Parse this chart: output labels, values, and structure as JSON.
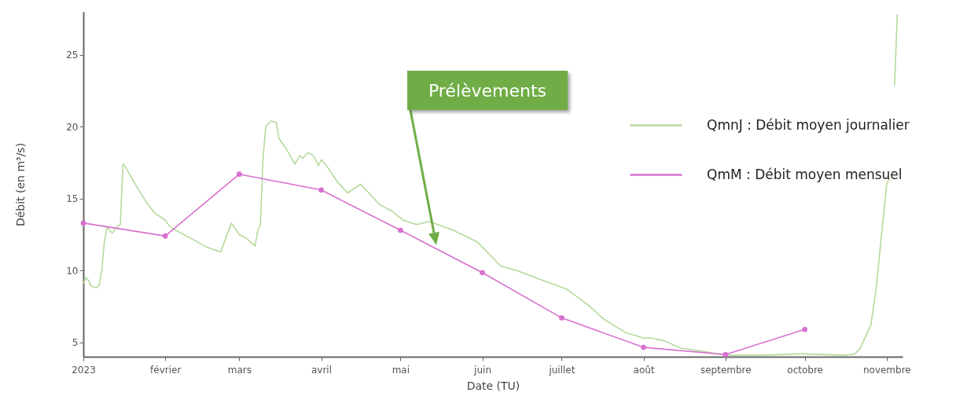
{
  "chart_data": {
    "type": "line",
    "xlabel": "Date (TU)",
    "ylabel": "Débit (en m³/s)",
    "xlim": [
      "2023-01-01",
      "2023-11-07"
    ],
    "ylim": [
      4,
      28
    ],
    "yticks": [
      5,
      10,
      15,
      20,
      25
    ],
    "xticks": [
      {
        "value": "2023-01-01",
        "label": "2023"
      },
      {
        "value": "2023-02-01",
        "label": "février"
      },
      {
        "value": "2023-03-01",
        "label": "mars"
      },
      {
        "value": "2023-04-01",
        "label": "avril"
      },
      {
        "value": "2023-05-01",
        "label": "mai"
      },
      {
        "value": "2023-06-01",
        "label": "juin"
      },
      {
        "value": "2023-07-01",
        "label": "juillet"
      },
      {
        "value": "2023-08-01",
        "label": "août"
      },
      {
        "value": "2023-09-01",
        "label": "septembre"
      },
      {
        "value": "2023-10-01",
        "label": "octobre"
      },
      {
        "value": "2023-11-01",
        "label": "novembre"
      }
    ],
    "grid": false,
    "legend": "top right",
    "annotations": [
      "Prélèvements"
    ],
    "series": [
      {
        "name": "QmnJ : Débit moyen journalier",
        "color": "#b5d99c",
        "x": [
          "2023-01-01",
          "2023-01-02",
          "2023-01-03",
          "2023-01-04",
          "2023-01-06",
          "2023-01-07",
          "2023-01-08",
          "2023-01-09",
          "2023-01-10",
          "2023-01-12",
          "2023-01-13",
          "2023-01-15",
          "2023-01-16",
          "2023-01-17",
          "2023-01-20",
          "2023-01-22",
          "2023-01-25",
          "2023-01-28",
          "2023-02-01",
          "2023-02-03",
          "2023-02-08",
          "2023-02-12",
          "2023-02-16",
          "2023-02-20",
          "2023-02-22",
          "2023-02-26",
          "2023-03-01",
          "2023-03-04",
          "2023-03-07",
          "2023-03-08",
          "2023-03-09",
          "2023-03-10",
          "2023-03-11",
          "2023-03-13",
          "2023-03-15",
          "2023-03-16",
          "2023-03-19",
          "2023-03-22",
          "2023-03-24",
          "2023-03-25",
          "2023-03-27",
          "2023-03-29",
          "2023-03-31",
          "2023-04-01",
          "2023-04-03",
          "2023-04-07",
          "2023-04-11",
          "2023-04-16",
          "2023-04-23",
          "2023-04-28",
          "2023-05-02",
          "2023-05-07",
          "2023-05-12",
          "2023-05-21",
          "2023-05-30",
          "2023-06-08",
          "2023-06-14",
          "2023-06-24",
          "2023-07-03",
          "2023-07-11",
          "2023-07-17",
          "2023-07-25",
          "2023-08-01",
          "2023-08-04",
          "2023-08-09",
          "2023-08-15",
          "2023-08-24",
          "2023-09-02",
          "2023-09-15",
          "2023-09-30",
          "2023-10-16",
          "2023-10-20",
          "2023-10-22",
          "2023-10-24",
          "2023-10-26",
          "2023-10-28",
          "2023-10-30",
          "2023-11-01",
          "2023-11-02",
          "2023-11-03",
          "2023-11-04",
          "2023-11-05"
        ],
        "values": [
          9.1,
          9.5,
          9.3,
          8.9,
          8.8,
          9.0,
          10.0,
          12.1,
          13.0,
          12.6,
          12.9,
          13.2,
          17.4,
          17.2,
          16.2,
          15.6,
          14.7,
          14.0,
          13.5,
          13.0,
          12.5,
          12.1,
          11.7,
          11.4,
          11.3,
          13.3,
          12.5,
          12.2,
          11.7,
          12.8,
          13.2,
          17.8,
          20.0,
          20.4,
          20.3,
          19.2,
          18.4,
          17.4,
          18.0,
          17.8,
          18.2,
          18.0,
          17.3,
          17.7,
          17.3,
          16.2,
          15.4,
          16.0,
          14.6,
          14.1,
          13.5,
          13.2,
          13.4,
          12.8,
          12.0,
          10.3,
          10.0,
          9.3,
          8.7,
          7.6,
          6.6,
          5.7,
          5.3,
          5.3,
          5.1,
          4.6,
          4.35,
          4.1,
          4.1,
          4.2,
          4.1,
          4.2,
          4.6,
          5.4,
          6.2,
          8.7,
          12.4,
          16.0,
          16.4,
          null,
          22.9,
          27.8
        ]
      },
      {
        "name": "QmM : Débit moyen mensuel",
        "color": "#d870cf",
        "marker": "circle",
        "x": [
          "2023-01-01",
          "2023-02-01",
          "2023-03-01",
          "2023-04-01",
          "2023-05-01",
          "2023-06-01",
          "2023-07-01",
          "2023-08-01",
          "2023-09-01",
          "2023-10-01"
        ],
        "values": [
          13.3,
          12.4,
          16.7,
          15.6,
          12.8,
          9.85,
          6.7,
          4.65,
          4.15,
          5.9
        ]
      }
    ]
  }
}
